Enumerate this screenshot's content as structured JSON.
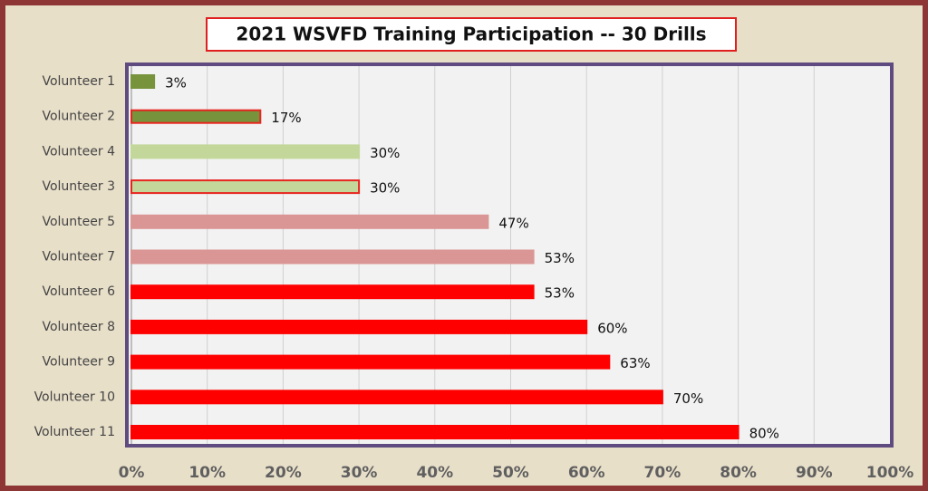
{
  "chart_data": {
    "type": "barh",
    "title": "2021 WSVFD Training Participation  -- 30 Drills",
    "categories": [
      "Volunteer 1",
      "Volunteer 2",
      "Volunteer 4",
      "Volunteer 3",
      "Volunteer 5",
      "Volunteer 7",
      "Volunteer 6",
      "Volunteer 8",
      "Volunteer 9",
      "Volunteer 10",
      "Volunteer 11"
    ],
    "values": [
      3,
      17,
      30,
      30,
      47,
      53,
      53,
      60,
      63,
      70,
      80
    ],
    "value_labels": [
      "3%",
      "17%",
      "30%",
      "30%",
      "47%",
      "53%",
      "53%",
      "60%",
      "63%",
      "70%",
      "80%"
    ],
    "colors": [
      "#77933c",
      "#77933c",
      "#c4d79b",
      "#c4d79b",
      "#da9694",
      "#da9694",
      "#ff0000",
      "#ff0000",
      "#ff0000",
      "#ff0000",
      "#ff0000"
    ],
    "edgecolors": [
      "#77933c",
      "#e8241f",
      "#c4d79b",
      "#e8241f",
      "#da9694",
      "#da9694",
      "#ff0000",
      "#ff0000",
      "#ff0000",
      "#ff0000",
      "#ff0000"
    ],
    "xlim": [
      0,
      100
    ],
    "xticks": [
      {
        "value": 0,
        "label": "0%"
      },
      {
        "value": 10,
        "label": "10%"
      },
      {
        "value": 20,
        "label": "20%"
      },
      {
        "value": 30,
        "label": "30%"
      },
      {
        "value": 40,
        "label": "40%"
      },
      {
        "value": 50,
        "label": "50%"
      },
      {
        "value": 60,
        "label": "60%"
      },
      {
        "value": 70,
        "label": "70%"
      },
      {
        "value": 80,
        "label": "80%"
      },
      {
        "value": 90,
        "label": "90%"
      },
      {
        "value": 100,
        "label": "100%"
      }
    ],
    "grid": true
  }
}
